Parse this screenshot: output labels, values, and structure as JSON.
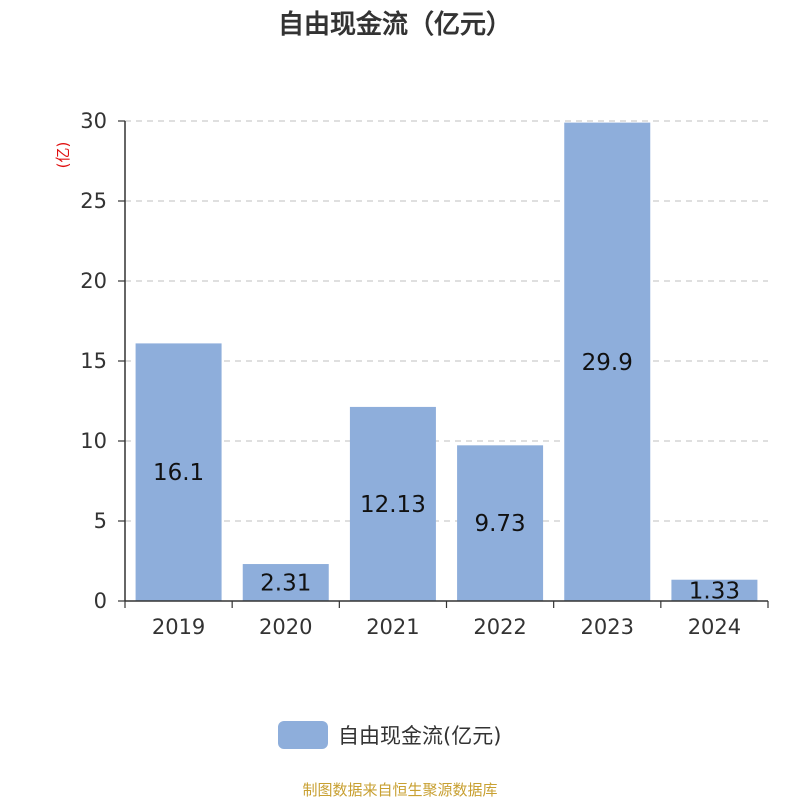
{
  "chart_data": {
    "type": "bar",
    "title": "自由现金流（亿元）",
    "ylabel": "(亿)",
    "categories": [
      "2019",
      "2020",
      "2021",
      "2022",
      "2023",
      "2024"
    ],
    "series": [
      {
        "name": "自由现金流(亿元)",
        "values": [
          16.1,
          2.31,
          12.13,
          9.73,
          29.9,
          1.33
        ]
      }
    ],
    "ylim": [
      0,
      30
    ],
    "yticks": [
      "0",
      "5",
      "10",
      "15",
      "20",
      "25",
      "30"
    ],
    "data_labels": [
      "16.1",
      "2.31",
      "12.13",
      "9.73",
      "29.9",
      "1.33"
    ],
    "grid": true,
    "legend_position": "bottom"
  },
  "colors": {
    "bar": "#8eaedb",
    "unit_label": "#e01010",
    "source": "#c8a032",
    "grid": "#cccccc",
    "axis": "#333333"
  },
  "source_text": "制图数据来自恒生聚源数据库"
}
